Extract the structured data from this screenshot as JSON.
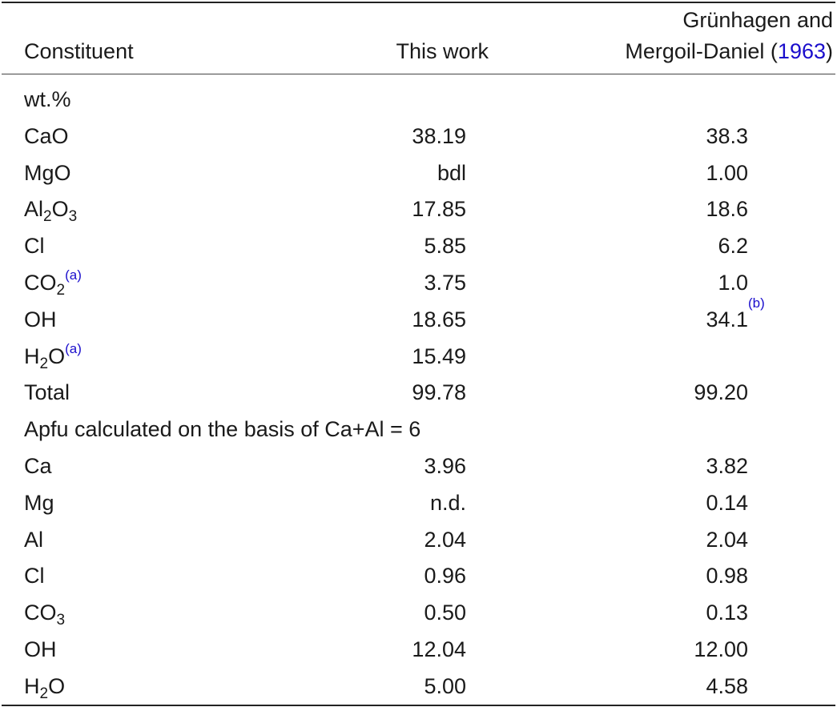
{
  "header": {
    "col1": "Constituent",
    "col2": "This work",
    "col3_line1": "Grünhagen and",
    "col3_line2_text": "Mergoil-Daniel (",
    "col3_line2_ref": "1963",
    "col3_line2_close": ")"
  },
  "rows": [
    {
      "label": "wt.%",
      "v1": "",
      "v2": ""
    },
    {
      "label": "CaO",
      "v1": "38.19",
      "v2": "38.3"
    },
    {
      "label": "MgO",
      "v1": "bdl",
      "v2": "1.00"
    },
    {
      "label_base": "Al",
      "label_sub": "2",
      "label_base2": "O",
      "label_sub2": "3",
      "v1": "17.85",
      "v2": "18.6"
    },
    {
      "label": "Cl",
      "v1": "5.85",
      "v2": "6.2"
    },
    {
      "label_base": "CO",
      "label_sub": "2",
      "label_sup": "(a)",
      "v1": "3.75",
      "v2": "1.0"
    },
    {
      "label": "OH",
      "v1": "18.65",
      "v2": "34.1",
      "v2_sup": "(b)"
    },
    {
      "label_base": "H",
      "label_sub": "2",
      "label_base2": "O",
      "label_sup": "(a)",
      "v1": "15.49",
      "v2": ""
    },
    {
      "label": "Total",
      "v1": "99.78",
      "v2": "99.20"
    },
    {
      "label": "Apfu calculated on the basis of Ca+Al = 6",
      "v1": "",
      "v2": ""
    },
    {
      "label": "Ca",
      "v1": "3.96",
      "v2": "3.82"
    },
    {
      "label": "Mg",
      "v1": "n.d.",
      "v2": "0.14"
    },
    {
      "label": "Al",
      "v1": "2.04",
      "v2": "2.04"
    },
    {
      "label": "Cl",
      "v1": "0.96",
      "v2": "0.98"
    },
    {
      "label_base": "CO",
      "label_sub": "3",
      "v1": "0.50",
      "v2": "0.13"
    },
    {
      "label": "OH",
      "v1": "12.04",
      "v2": "12.00"
    },
    {
      "label_base": "H",
      "label_sub": "2",
      "label_base2": "O",
      "v1": "5.00",
      "v2": "4.58"
    }
  ]
}
